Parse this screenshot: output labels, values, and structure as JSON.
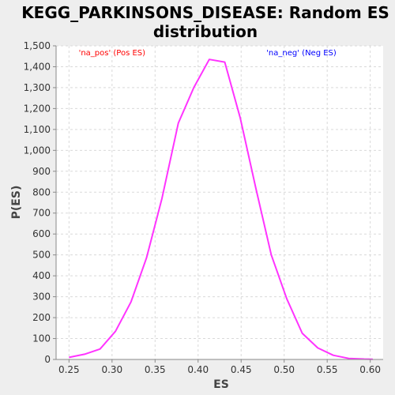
{
  "colors": {
    "page_bg": "#eeeeee",
    "plot_bg": "#ffffff",
    "grid": "#d9d9d9",
    "axis": "#8a8a8a",
    "line": "#ff33ff",
    "pos_label": "#ff0000",
    "neg_label": "#0000ff"
  },
  "chart_data": {
    "type": "line",
    "title_lines": [
      "KEGG_PARKINSONS_DISEASE: Random ES",
      "distribution"
    ],
    "xlabel": "ES",
    "ylabel": "P(ES)",
    "xlim": [
      0.235,
      0.615
    ],
    "ylim": [
      0,
      1500
    ],
    "xticks": [
      "0.25",
      "0.30",
      "0.35",
      "0.40",
      "0.45",
      "0.50",
      "0.55",
      "0.60"
    ],
    "xtick_values": [
      0.25,
      0.3,
      0.35,
      0.4,
      0.45,
      0.5,
      0.55,
      0.6
    ],
    "yticks": [
      "0",
      "100",
      "200",
      "300",
      "400",
      "500",
      "600",
      "700",
      "800",
      "900",
      "1,000",
      "1,100",
      "1,200",
      "1,300",
      "1,400",
      "1,500"
    ],
    "ytick_values": [
      0,
      100,
      200,
      300,
      400,
      500,
      600,
      700,
      800,
      900,
      1000,
      1100,
      1200,
      1300,
      1400,
      1500
    ],
    "grid": true,
    "annotations": [
      {
        "text": "'na_pos' (Pos ES)",
        "color": "#ff0000",
        "anchor_x": 0.3
      },
      {
        "text": "'na_neg' (Neg ES)",
        "color": "#0000ff",
        "anchor_x": 0.52
      }
    ],
    "series": [
      {
        "color": "#ff33ff",
        "x": [
          0.25,
          0.268,
          0.286,
          0.304,
          0.322,
          0.34,
          0.358,
          0.377,
          0.395,
          0.413,
          0.431,
          0.449,
          0.467,
          0.485,
          0.503,
          0.521,
          0.539,
          0.557,
          0.575,
          0.593,
          0.603
        ],
        "y": [
          10,
          25,
          50,
          135,
          275,
          485,
          770,
          1130,
          1300,
          1435,
          1422,
          1155,
          820,
          500,
          290,
          125,
          55,
          20,
          5,
          2,
          1
        ]
      }
    ]
  }
}
